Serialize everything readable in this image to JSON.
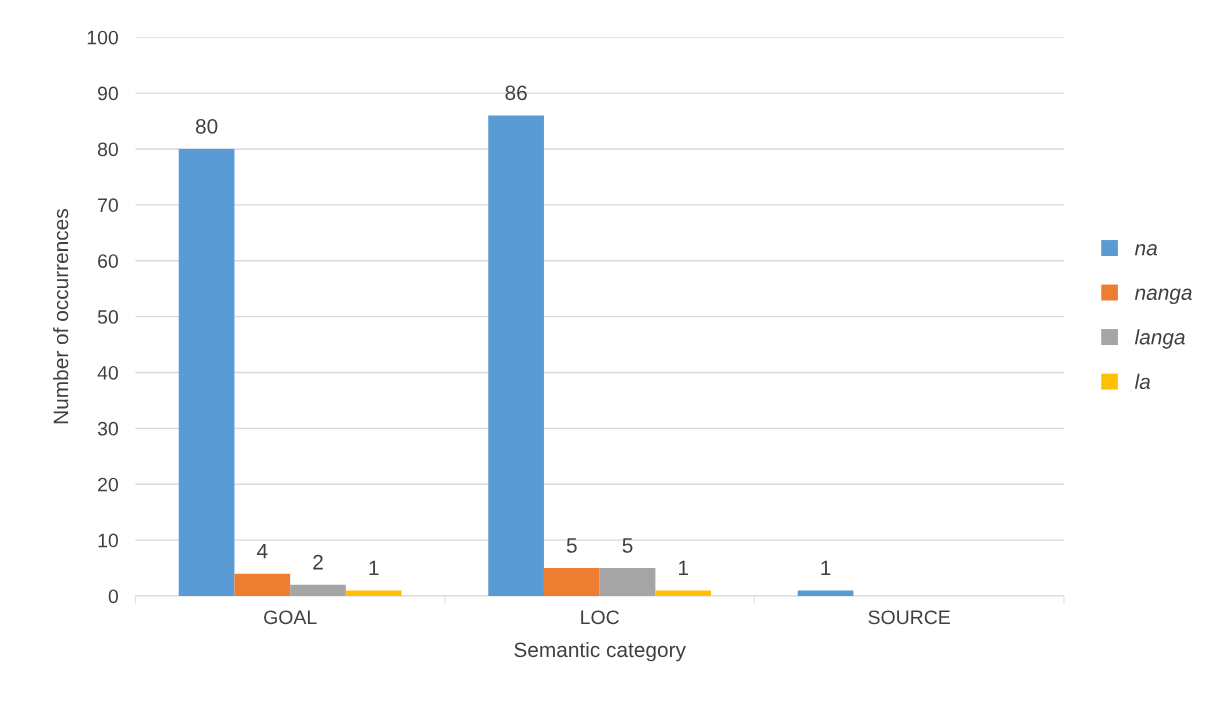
{
  "chart_data": {
    "type": "bar",
    "xlabel": "Semantic category",
    "ylabel": "Number of occurrences",
    "categories": [
      "GOAL",
      "LOC",
      "SOURCE"
    ],
    "series": [
      {
        "name": "na",
        "color": "#5b9bd5",
        "values": [
          80,
          86,
          1
        ]
      },
      {
        "name": "nanga",
        "color": "#ed7d31",
        "values": [
          4,
          5,
          null
        ]
      },
      {
        "name": "langa",
        "color": "#a5a5a5",
        "values": [
          2,
          5,
          null
        ]
      },
      {
        "name": "la",
        "color": "#ffc000",
        "values": [
          1,
          1,
          null
        ]
      }
    ],
    "ylim": [
      0,
      100
    ],
    "yticks": [
      0,
      10,
      20,
      30,
      40,
      50,
      60,
      70,
      80,
      90,
      100
    ],
    "grid": "y",
    "legend": "right",
    "data_labels": true
  }
}
